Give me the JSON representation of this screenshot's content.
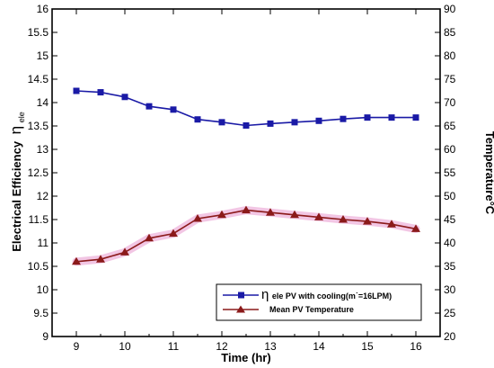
{
  "chart_data": {
    "type": "line",
    "x": [
      9,
      9.5,
      10,
      10.5,
      11,
      11.5,
      12,
      12.5,
      13,
      13.5,
      14,
      14.5,
      15,
      15.5,
      16
    ],
    "xlabel": "Time (hr)",
    "ylabel_left_main": "Electrical Efficiency",
    "ylabel_left_symbol": "η",
    "ylabel_left_subscript": "ele",
    "ylabel_right": "Temperature°C",
    "xlim": [
      8.5,
      16.5
    ],
    "ylim_left": [
      9,
      16
    ],
    "ylim_right": [
      20,
      90
    ],
    "x_ticks": [
      "9",
      "10",
      "11",
      "12",
      "13",
      "14",
      "15",
      "16"
    ],
    "y_left_ticks": [
      "9",
      "9.5",
      "10",
      "10.5",
      "11",
      "11.5",
      "12",
      "12.5",
      "13",
      "13.5",
      "14",
      "14.5",
      "15",
      "15.5",
      "16"
    ],
    "y_right_ticks": [
      "20",
      "25",
      "30",
      "35",
      "40",
      "45",
      "50",
      "55",
      "60",
      "65",
      "70",
      "75",
      "80",
      "85",
      "90"
    ],
    "grid": false,
    "legend_position": "bottom-right",
    "series": [
      {
        "legend_symbol": "η",
        "legend_text": "ele PV with cooling(m˙=16LPM)",
        "axis": "left",
        "marker": "square",
        "color": "#1a1aa6",
        "values": [
          14.25,
          14.22,
          14.12,
          13.92,
          13.85,
          13.64,
          13.58,
          13.51,
          13.55,
          13.58,
          13.61,
          13.65,
          13.68,
          13.68,
          13.68
        ]
      },
      {
        "legend_text": "Mean PV Temperature",
        "axis": "right",
        "marker": "triangle",
        "color": "#8b1a1a",
        "halo_color": "#f2c6e4",
        "values": [
          36.0,
          36.5,
          38.0,
          41.0,
          42.0,
          45.2,
          46.0,
          47.0,
          46.5,
          46.0,
          45.5,
          45.0,
          44.6,
          44.0,
          43.0
        ]
      }
    ]
  }
}
